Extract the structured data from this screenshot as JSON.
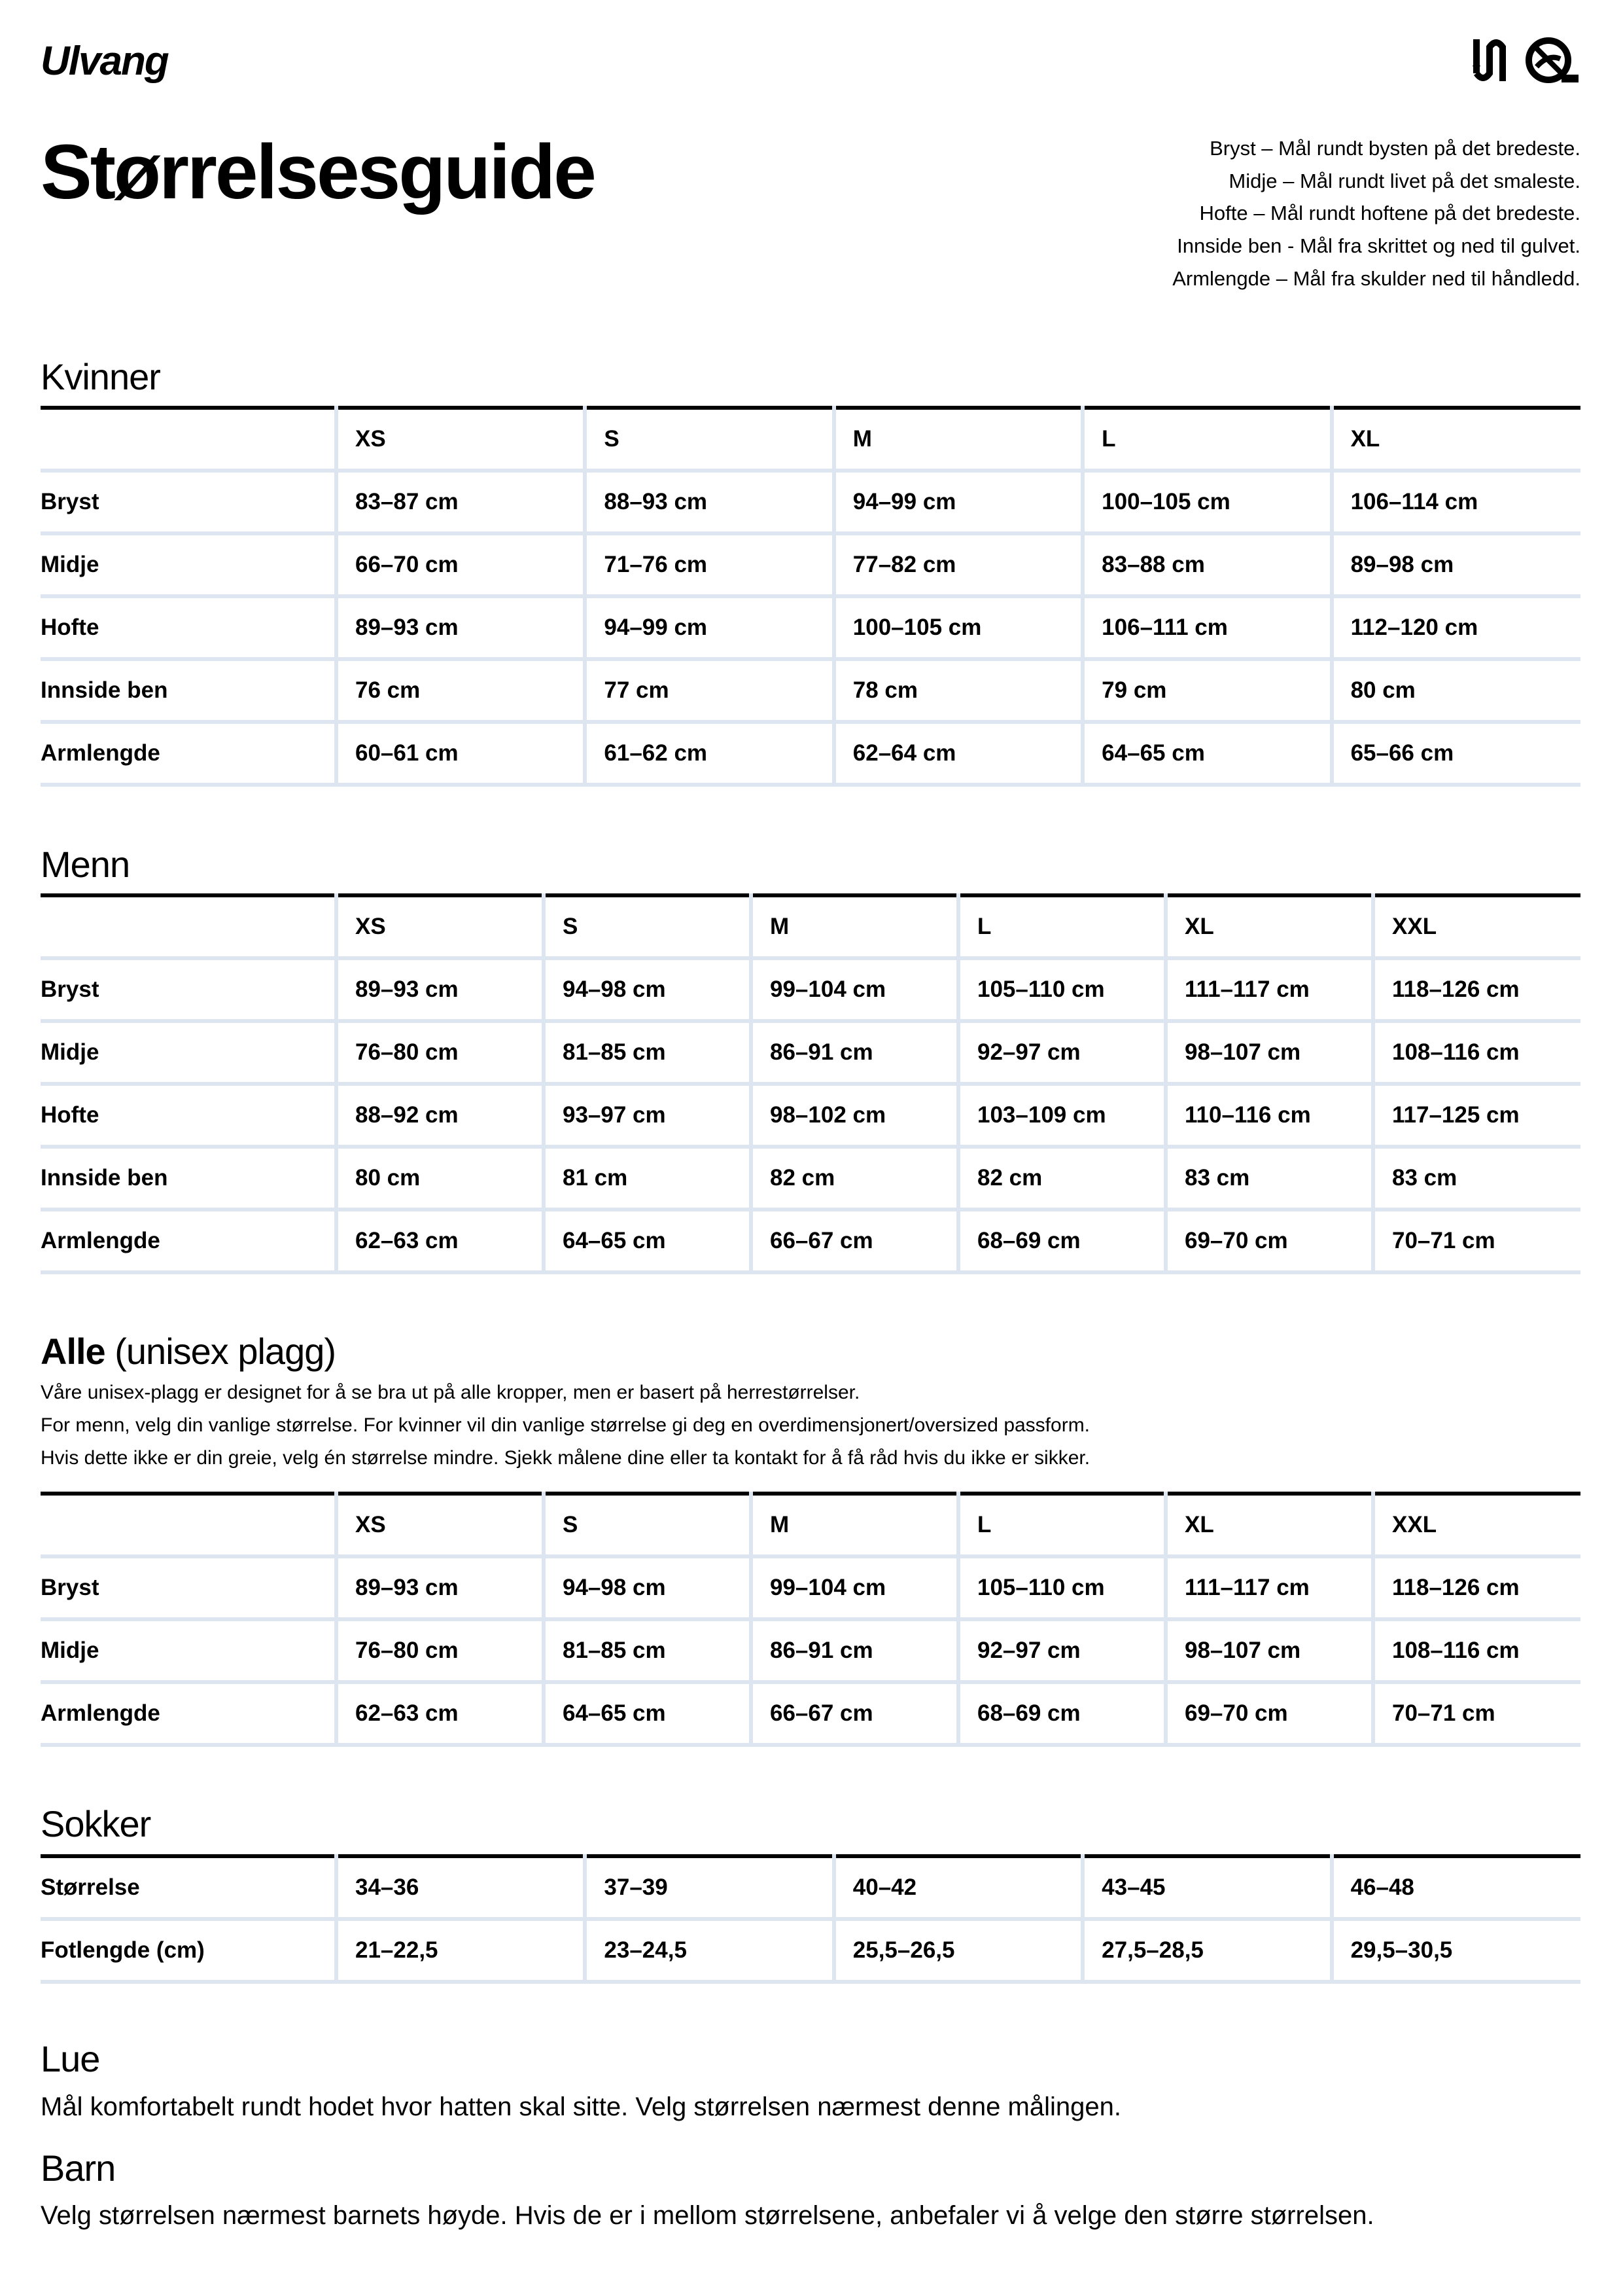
{
  "brand": {
    "logo_text": "Ulvang",
    "mark_icon": "ulvang-wool-mark-icon"
  },
  "title": "Størrelsesguide",
  "notes": [
    "Bryst – Mål rundt bysten på det bredeste.",
    "Midje – Mål rundt livet på det smaleste.",
    "Hofte – Mål rundt hoftene på det bredeste.",
    "Innside ben - Mål fra skrittet og ned til gulvet.",
    "Armlengde – Mål fra skulder ned til håndledd."
  ],
  "kvinner": {
    "heading": "Kvinner",
    "sizes": [
      "XS",
      "S",
      "M",
      "L",
      "XL"
    ],
    "rows": [
      {
        "label": "Bryst",
        "values": [
          "83–87 cm",
          "88–93 cm",
          "94–99 cm",
          "100–105 cm",
          "106–114 cm"
        ]
      },
      {
        "label": "Midje",
        "values": [
          "66–70 cm",
          "71–76 cm",
          "77–82 cm",
          "83–88 cm",
          "89–98 cm"
        ]
      },
      {
        "label": "Hofte",
        "values": [
          "89–93 cm",
          "94–99 cm",
          "100–105 cm",
          "106–111 cm",
          "112–120 cm"
        ]
      },
      {
        "label": "Innside ben",
        "values": [
          "76 cm",
          "77 cm",
          "78 cm",
          "79 cm",
          "80 cm"
        ]
      },
      {
        "label": "Armlengde",
        "values": [
          "60–61 cm",
          "61–62 cm",
          "62–64 cm",
          "64–65 cm",
          "65–66 cm"
        ]
      }
    ]
  },
  "menn": {
    "heading": "Menn",
    "sizes": [
      "XS",
      "S",
      "M",
      "L",
      "XL",
      "XXL"
    ],
    "rows": [
      {
        "label": "Bryst",
        "values": [
          "89–93 cm",
          "94–98 cm",
          "99–104 cm",
          "105–110 cm",
          "111–117 cm",
          "118–126 cm"
        ]
      },
      {
        "label": "Midje",
        "values": [
          "76–80 cm",
          "81–85 cm",
          "86–91 cm",
          "92–97 cm",
          "98–107 cm",
          "108–116 cm"
        ]
      },
      {
        "label": "Hofte",
        "values": [
          "88–92 cm",
          "93–97 cm",
          "98–102 cm",
          "103–109 cm",
          "110–116 cm",
          "117–125 cm"
        ]
      },
      {
        "label": "Innside ben",
        "values": [
          "80 cm",
          "81 cm",
          "82 cm",
          "82 cm",
          "83 cm",
          "83 cm"
        ]
      },
      {
        "label": "Armlengde",
        "values": [
          "62–63 cm",
          "64–65 cm",
          "66–67 cm",
          "68–69 cm",
          "69–70 cm",
          "70–71 cm"
        ]
      }
    ]
  },
  "alle": {
    "heading": "Alle",
    "heading_suffix": "(unisex plagg)",
    "description": [
      "Våre unisex-plagg er designet for å se bra ut på alle kropper, men er basert på herrestørrelser.",
      "For menn, velg din vanlige størrelse. For kvinner vil din vanlige størrelse gi deg en overdimensjonert/oversized passform.",
      "Hvis dette ikke er din greie, velg én størrelse mindre. Sjekk målene dine eller ta kontakt for å få råd hvis du ikke er sikker."
    ],
    "sizes": [
      "XS",
      "S",
      "M",
      "L",
      "XL",
      "XXL"
    ],
    "rows": [
      {
        "label": "Bryst",
        "values": [
          "89–93 cm",
          "94–98 cm",
          "99–104 cm",
          "105–110 cm",
          "111–117 cm",
          "118–126 cm"
        ]
      },
      {
        "label": "Midje",
        "values": [
          "76–80 cm",
          "81–85 cm",
          "86–91 cm",
          "92–97 cm",
          "98–107 cm",
          "108–116 cm"
        ]
      },
      {
        "label": "Armlengde",
        "values": [
          "62–63 cm",
          "64–65 cm",
          "66–67 cm",
          "68–69 cm",
          "69–70 cm",
          "70–71 cm"
        ]
      }
    ]
  },
  "sokker": {
    "heading": "Sokker",
    "rows": [
      {
        "label": "Størrelse",
        "values": [
          "34–36",
          "37–39",
          "40–42",
          "43–45",
          "46–48"
        ]
      },
      {
        "label": "Fotlengde (cm)",
        "values": [
          "21–22,5",
          "23–24,5",
          "25,5–26,5",
          "27,5–28,5",
          "29,5–30,5"
        ]
      }
    ]
  },
  "lue": {
    "heading": "Lue",
    "text": "Mål komfortabelt rundt hodet hvor hatten skal sitte. Velg størrelsen nærmest denne målingen."
  },
  "barn": {
    "heading": "Barn",
    "text": "Velg størrelsen nærmest barnets høyde. Hvis de er i mellom størrelsene, anbefaler vi å velge den større størrelsen."
  },
  "colors": {
    "grid": "#dde5f0",
    "rule": "#000000"
  }
}
